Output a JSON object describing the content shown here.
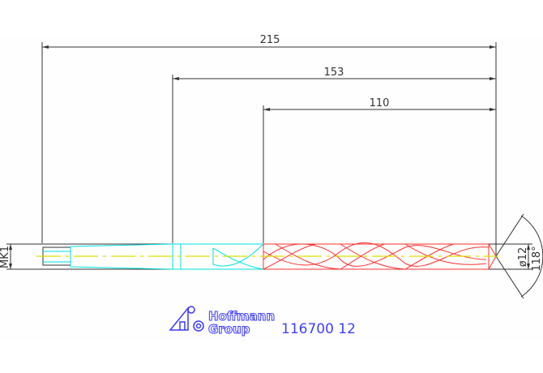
{
  "drawing": {
    "dimensions": {
      "overall": "215",
      "flute_and_body": "153",
      "flute": "110",
      "diameter": "ø12",
      "point_angle": "118°",
      "shank_taper": "MK1"
    },
    "part_number": "116700 12",
    "logo": {
      "line1": "Hoffmann",
      "line2": "Group"
    },
    "colors": {
      "dimension": "#333333",
      "shank": "#00e5e5",
      "flute": "#ff3030",
      "centerline": "#e0e000",
      "logo": "#3a3aff"
    }
  }
}
